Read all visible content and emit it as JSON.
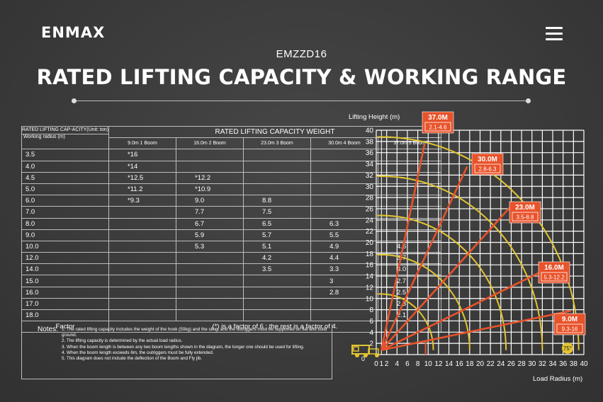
{
  "header": {
    "logo": "ENMAX",
    "model": "EMZZD16",
    "title": "RATED LIFTING CAPACITY & WORKING RANGE"
  },
  "table": {
    "corner_top": "RATED LIFTING CAP-ACITY(Unit: ton)",
    "corner_bottom": "Working radius (m)",
    "group_header": "RATED LIFTING CAPACITY WEIGHT",
    "columns": [
      "9.0m 1 Boom",
      "16.0m 2 Boom",
      "23.0m 3 Boom",
      "30.0m 4 Boom",
      "37.0m 5 Boom"
    ],
    "rows": [
      {
        "r": "3.5",
        "v": [
          "*16",
          "",
          "",
          "",
          ""
        ]
      },
      {
        "r": "4.0",
        "v": [
          "*14",
          "",
          "",
          "",
          ""
        ]
      },
      {
        "r": "4.5",
        "v": [
          "*12.5",
          "*12.2",
          "",
          "",
          ""
        ]
      },
      {
        "r": "5.0",
        "v": [
          "*11.2",
          "*10.9",
          "",
          "",
          ""
        ]
      },
      {
        "r": "6.0",
        "v": [
          "*9.3",
          "9.0",
          "8.8",
          "",
          ""
        ]
      },
      {
        "r": "7.0",
        "v": [
          "",
          "7.7",
          "7.5",
          "",
          ""
        ]
      },
      {
        "r": "8.0",
        "v": [
          "",
          "6.7",
          "6.5",
          "6.3",
          ""
        ]
      },
      {
        "r": "9.0",
        "v": [
          "",
          "5.9",
          "5.7",
          "5.5",
          ""
        ]
      },
      {
        "r": "10.0",
        "v": [
          "",
          "5.3",
          "5.1",
          "4.9",
          "4.6"
        ]
      },
      {
        "r": "12.0",
        "v": [
          "",
          "",
          "4.2",
          "4.4",
          "3.7"
        ]
      },
      {
        "r": "14.0",
        "v": [
          "",
          "",
          "3.5",
          "3.3",
          "3.0"
        ]
      },
      {
        "r": "15.0",
        "v": [
          "",
          "",
          "",
          "3",
          "2.7"
        ]
      },
      {
        "r": "16.0",
        "v": [
          "",
          "",
          "",
          "2.8",
          "2.5"
        ]
      },
      {
        "r": "17.0",
        "v": [
          "",
          "",
          "",
          "",
          "2.3"
        ]
      },
      {
        "r": "18.0",
        "v": [
          "",
          "",
          "",
          "",
          "2.1"
        ]
      }
    ],
    "factor_label": "Factor",
    "factor_text": "(*) is a factor of 6 ;   the rest is a factor of 4."
  },
  "notes": {
    "label": "Notes:",
    "lines": [
      "1. The rated lifting capacity includes the weight of the hook (50kg) and the sling, and the outriggers must be supported on flat and solid ground.",
      "2. The lifting capacity is determined by the actual load radius.",
      "3. When the boom length is between any two boom lengths shown in the diagram, the longer one should be used for lifting.",
      "4. When the boom length exceeds 6m, the outriggers must be fully extended.",
      "5. This diagram does not include the deflection of the Boom and Fly jib."
    ]
  },
  "chart_data": {
    "type": "line",
    "ylabel": "Lifting Height (m)",
    "xlabel": "Load Radius (m)",
    "xlim": [
      0,
      40
    ],
    "ylim": [
      0,
      40
    ],
    "xticks": [
      0,
      1,
      2,
      4,
      6,
      8,
      10,
      12,
      14,
      16,
      18,
      20,
      22,
      24,
      26,
      28,
      30,
      32,
      34,
      36,
      38,
      40
    ],
    "yticks": [
      2,
      4,
      6,
      8,
      10,
      12,
      14,
      16,
      18,
      20,
      22,
      24,
      26,
      28,
      30,
      32,
      34,
      36,
      38,
      40
    ],
    "origin_label": "0",
    "grid": true,
    "series": [
      {
        "name": "37.0M",
        "range": "2.1-4.6",
        "length": 37,
        "tip": [
          9.3,
          37.5
        ]
      },
      {
        "name": "30.0M",
        "range": "2.8-6.3",
        "length": 30,
        "tip": [
          17.5,
          33.5
        ]
      },
      {
        "name": "23.0M",
        "range": "3.5-8.8",
        "length": 23,
        "tip": [
          26,
          26.5
        ]
      },
      {
        "name": "16.0M",
        "range": "5.3-12.2",
        "length": 16,
        "tip": [
          34.5,
          16
        ]
      },
      {
        "name": "9.0M",
        "range": "9.3-16",
        "length": 9,
        "tip": [
          37.5,
          7.8
        ]
      }
    ],
    "angle_label": "75°",
    "colors": {
      "boom": "#e8532b",
      "arc": "#e3c531",
      "grid": "#ffffff",
      "label_bg": "#e8532b"
    }
  }
}
